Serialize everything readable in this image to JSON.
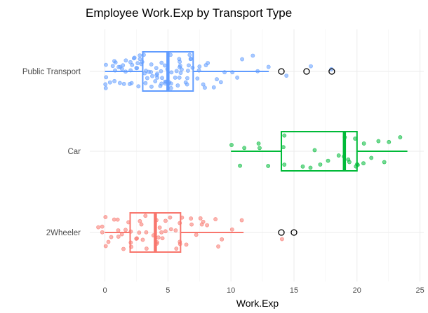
{
  "chart_data": {
    "type": "boxplot",
    "title": "Employee Work.Exp by Transport Type",
    "xlabel": "Work.Exp",
    "ylabel": "",
    "xlim": [
      -1.2,
      25.3
    ],
    "x_ticks": [
      0,
      5,
      10,
      15,
      20,
      25
    ],
    "grid": true,
    "orientation": "horizontal",
    "categories": [
      "Public Transport",
      "Car",
      "2Wheeler"
    ],
    "series": [
      {
        "category": "Public Transport",
        "color": "#619CFF",
        "box": {
          "min": 0,
          "q1": 3,
          "median": 5,
          "q3": 7,
          "max": 13
        },
        "outliers": [
          14,
          16,
          18
        ],
        "points": [
          0,
          0,
          0,
          0.2,
          0.3,
          0.5,
          0.6,
          0.8,
          0.9,
          1,
          1,
          1.1,
          1.2,
          1.3,
          1.4,
          1.5,
          1.6,
          1.7,
          1.8,
          1.9,
          2,
          2,
          2.1,
          2.2,
          2.3,
          2.4,
          2.5,
          2.6,
          2.7,
          2.8,
          2.9,
          3,
          3,
          3,
          3.1,
          3.2,
          3.3,
          3.4,
          3.5,
          3.6,
          3.7,
          3.8,
          3.9,
          4,
          4,
          4,
          4.1,
          4.2,
          4.3,
          4.4,
          4.5,
          4.6,
          4.7,
          4.8,
          4.9,
          5,
          5,
          5,
          5,
          5.1,
          5.2,
          5.3,
          5.4,
          5.5,
          5.6,
          5.7,
          5.8,
          5.9,
          6,
          6,
          6,
          6.1,
          6.2,
          6.3,
          6.4,
          6.5,
          6.6,
          6.7,
          6.8,
          6.9,
          7,
          7,
          7.2,
          7.4,
          7.6,
          7.8,
          8,
          8,
          8.3,
          8.6,
          9,
          9.3,
          9.6,
          10,
          10.4,
          11,
          11.6,
          12.3,
          13,
          14.3,
          16.3,
          18
        ]
      },
      {
        "category": "Car",
        "color": "#00BA38",
        "box": {
          "min": 10,
          "q1": 14,
          "median": 19,
          "q3": 20,
          "max": 24
        },
        "outliers": [],
        "points": [
          10,
          10.5,
          11,
          12,
          12.5,
          13,
          14,
          14.2,
          14.4,
          15.8,
          16.2,
          16.5,
          17,
          17.8,
          18.5,
          19,
          19.1,
          19.2,
          19.5,
          19.8,
          20,
          20,
          20.2,
          20.4,
          20.6,
          21,
          21.6,
          22,
          22.4,
          23.6
        ]
      },
      {
        "category": "2Wheeler",
        "color": "#F8766D",
        "box": {
          "min": 0,
          "q1": 2,
          "median": 4,
          "q3": 6,
          "max": 11
        },
        "outliers": [
          14,
          15
        ],
        "points": [
          -0.4,
          -0.2,
          0,
          0,
          0.2,
          0.4,
          0.5,
          0.7,
          0.9,
          1,
          1.1,
          1.3,
          1.5,
          1.7,
          1.9,
          2,
          2,
          2.1,
          2.3,
          2.5,
          2.7,
          2.9,
          3,
          3,
          3.1,
          3.3,
          3.5,
          3.7,
          3.9,
          4,
          4,
          4,
          4.2,
          4.4,
          4.6,
          4.8,
          5,
          5,
          5.2,
          5.4,
          5.6,
          5.8,
          6,
          6,
          6.2,
          6.5,
          6.8,
          7,
          7.2,
          7.5,
          7.8,
          8,
          8.3,
          8.6,
          9,
          9.5,
          10,
          11.1,
          14.2
        ]
      }
    ]
  }
}
